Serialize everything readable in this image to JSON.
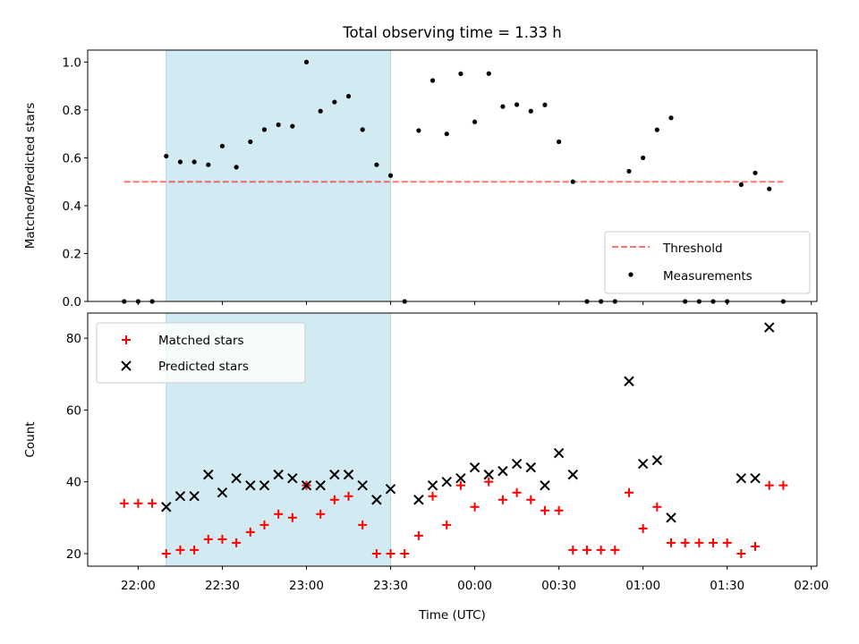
{
  "colors": {
    "shade": "#add8e6",
    "threshold": "#ff0000",
    "measurement": "#000000",
    "matched": "#ff0000",
    "predicted": "#000000"
  },
  "chart_data": [
    {
      "type": "scatter",
      "title": "Total observing time = 1.33 h",
      "ylabel": "Matched/Predicted stars",
      "xlabel": "",
      "ylim": [
        0,
        1.05
      ],
      "yticks": [
        "0.0",
        "0.2",
        "0.4",
        "0.6",
        "0.8",
        "1.0"
      ],
      "ytick_values": [
        0,
        0.2,
        0.4,
        0.6,
        0.8,
        1.0
      ],
      "shaded_interval": [
        "22:10",
        "23:30"
      ],
      "threshold": {
        "name": "Threshold",
        "value": 0.5,
        "x_range": [
          "21:55",
          "01:50"
        ]
      },
      "series": [
        {
          "name": "Measurements",
          "x": [
            "21:55",
            "22:00",
            "22:05",
            "22:10",
            "22:15",
            "22:20",
            "22:25",
            "22:30",
            "22:35",
            "22:40",
            "22:45",
            "22:50",
            "22:55",
            "23:00",
            "23:05",
            "23:10",
            "23:15",
            "23:20",
            "23:25",
            "23:30",
            "23:35",
            "23:40",
            "23:45",
            "23:50",
            "23:55",
            "00:00",
            "00:05",
            "00:10",
            "00:15",
            "00:20",
            "00:25",
            "00:30",
            "00:35",
            "00:40",
            "00:45",
            "00:50",
            "00:55",
            "01:00",
            "01:05",
            "01:10",
            "01:15",
            "01:20",
            "01:25",
            "01:30",
            "01:35",
            "01:40",
            "01:45",
            "01:50"
          ],
          "y": [
            0,
            0,
            0,
            0.607,
            0.583,
            0.583,
            0.571,
            0.649,
            0.561,
            0.667,
            0.718,
            0.738,
            0.732,
            1.0,
            0.795,
            0.833,
            0.857,
            0.718,
            0.571,
            0.526,
            0,
            0.714,
            0.923,
            0.7,
            0.951,
            0.75,
            0.952,
            0.814,
            0.822,
            0.795,
            0.821,
            0.667,
            0.5,
            0,
            0,
            0,
            0.544,
            0.6,
            0.717,
            0.767,
            0,
            0,
            0,
            0,
            0.488,
            0.537,
            0.47,
            0
          ]
        }
      ],
      "legend": "bottom-right"
    },
    {
      "type": "scatter",
      "xlabel": "Time (UTC)",
      "ylabel": "Count",
      "ylim": [
        16.5,
        87
      ],
      "yticks": [
        "20",
        "40",
        "60",
        "80"
      ],
      "ytick_values": [
        20,
        40,
        60,
        80
      ],
      "xticks": [
        "22:00",
        "22:30",
        "23:00",
        "23:30",
        "00:00",
        "00:30",
        "01:00",
        "01:30",
        "02:00"
      ],
      "xlim": [
        "21:42",
        "02:02"
      ],
      "shaded_interval": [
        "22:10",
        "23:30"
      ],
      "series": [
        {
          "name": "Matched stars",
          "x": [
            "21:55",
            "22:00",
            "22:05",
            "22:10",
            "22:15",
            "22:20",
            "22:25",
            "22:30",
            "22:35",
            "22:40",
            "22:45",
            "22:50",
            "22:55",
            "23:00",
            "23:05",
            "23:10",
            "23:15",
            "23:20",
            "23:25",
            "23:30",
            "23:35",
            "23:40",
            "23:45",
            "23:50",
            "23:55",
            "00:00",
            "00:05",
            "00:10",
            "00:15",
            "00:20",
            "00:25",
            "00:30",
            "00:35",
            "00:40",
            "00:45",
            "00:50",
            "00:55",
            "01:00",
            "01:05",
            "01:10",
            "01:15",
            "01:20",
            "01:25",
            "01:30",
            "01:35",
            "01:40",
            "01:45",
            "01:50"
          ],
          "y": [
            34,
            34,
            34,
            20,
            21,
            21,
            24,
            24,
            23,
            26,
            28,
            31,
            30,
            39,
            31,
            35,
            36,
            28,
            20,
            20,
            20,
            25,
            36,
            28,
            39,
            33,
            40,
            35,
            37,
            35,
            32,
            32,
            21,
            21,
            21,
            21,
            37,
            27,
            33,
            23,
            23,
            23,
            23,
            23,
            20,
            22,
            39,
            39
          ]
        },
        {
          "name": "Predicted stars",
          "x": [
            "22:10",
            "22:15",
            "22:20",
            "22:25",
            "22:30",
            "22:35",
            "22:40",
            "22:45",
            "22:50",
            "22:55",
            "23:00",
            "23:05",
            "23:10",
            "23:15",
            "23:20",
            "23:25",
            "23:30",
            "23:40",
            "23:45",
            "23:50",
            "23:55",
            "00:00",
            "00:05",
            "00:10",
            "00:15",
            "00:20",
            "00:25",
            "00:30",
            "00:35",
            "00:55",
            "01:00",
            "01:05",
            "01:10",
            "01:35",
            "01:40",
            "01:45"
          ],
          "y": [
            33,
            36,
            36,
            42,
            37,
            41,
            39,
            39,
            42,
            41,
            39,
            39,
            42,
            42,
            39,
            35,
            38,
            35,
            39,
            40,
            41,
            44,
            42,
            43,
            45,
            44,
            39,
            48,
            42,
            68,
            45,
            46,
            30,
            41,
            41,
            83
          ]
        }
      ],
      "legend": "top-left"
    }
  ]
}
